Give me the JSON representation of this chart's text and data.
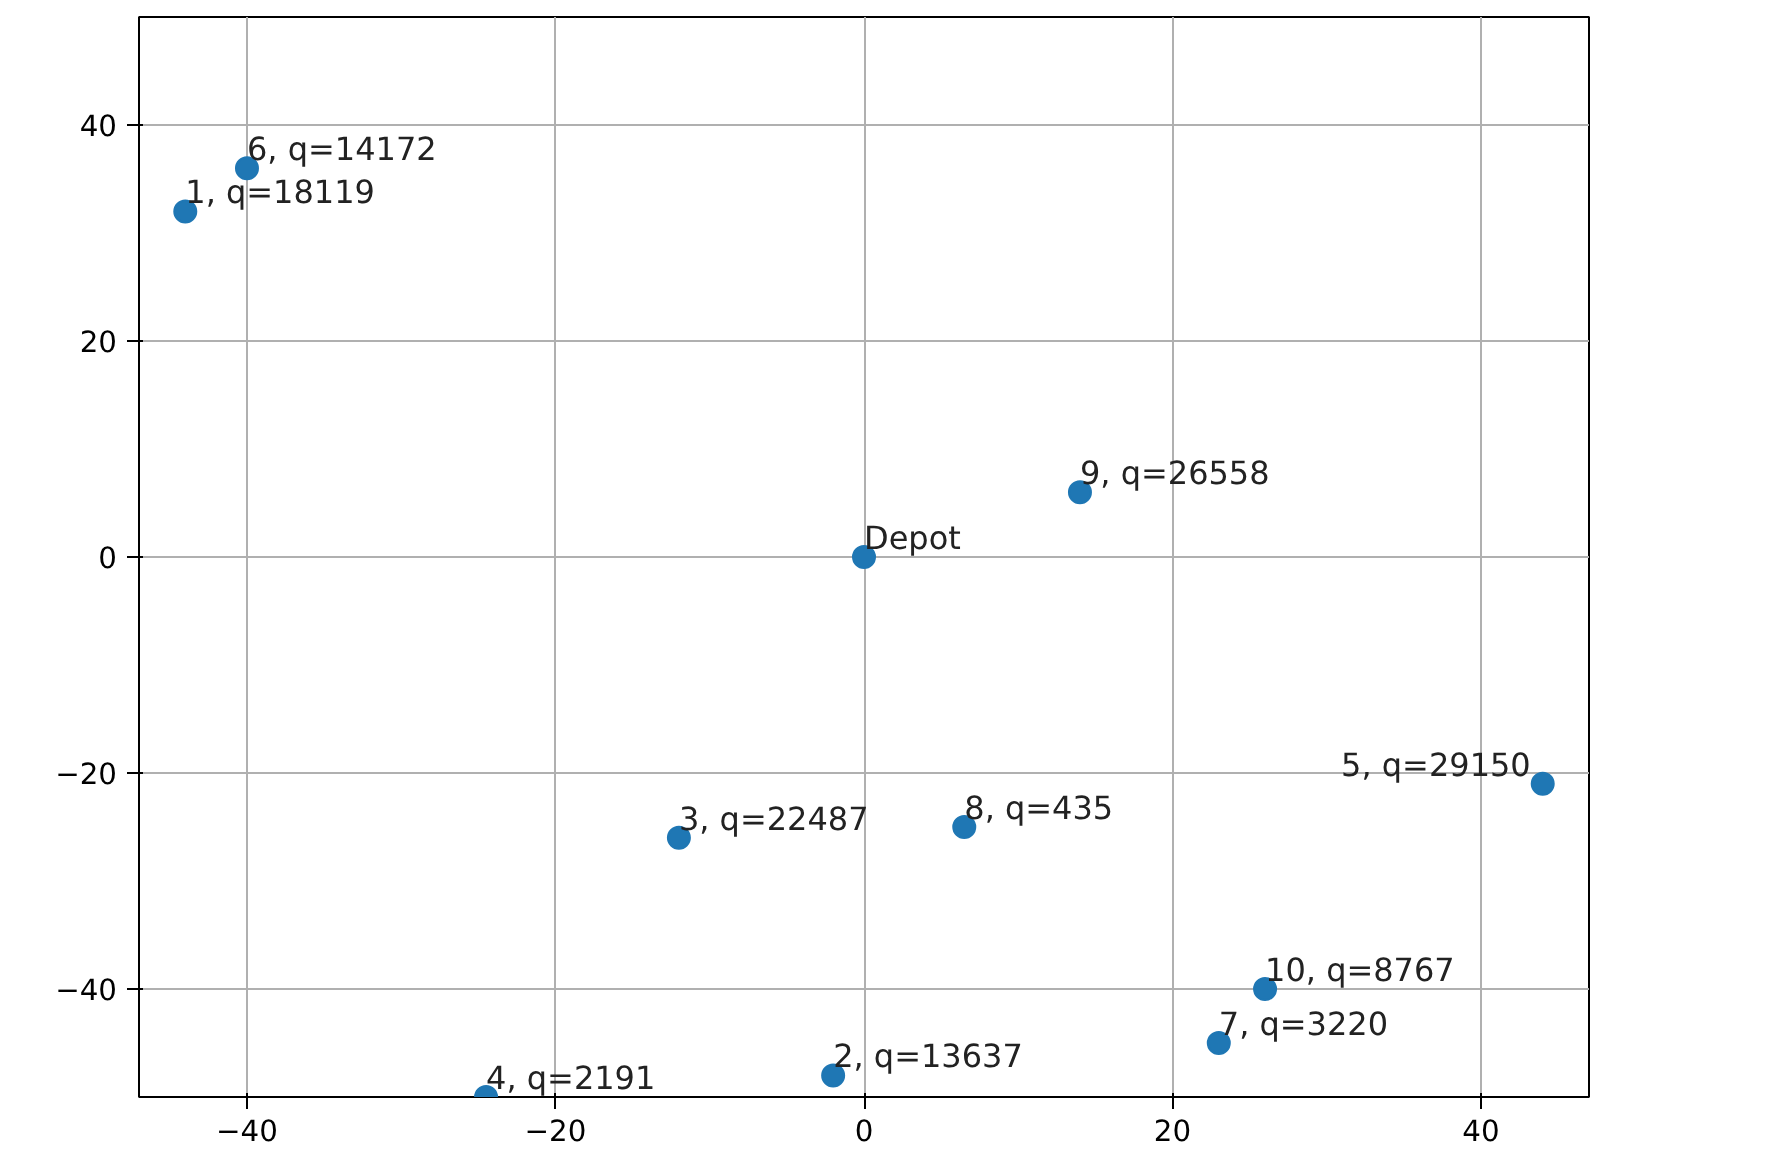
{
  "chart_data": {
    "type": "scatter",
    "x": [
      0,
      -44,
      -2,
      -12,
      -24.5,
      44,
      -40,
      23,
      6.5,
      14,
      26
    ],
    "values": [
      0,
      32,
      -48,
      -26,
      -50,
      -21,
      36,
      -45,
      -25,
      6,
      -40
    ],
    "color": "#1f77b4",
    "marker": "circle",
    "xlim": [
      -47,
      47
    ],
    "ylim": [
      -50,
      50
    ],
    "xticks": [
      -40,
      -20,
      0,
      20,
      40
    ],
    "yticks": [
      -40,
      -20,
      0,
      20,
      40
    ],
    "grid": true,
    "annotations": [
      {
        "text": "Depot",
        "x": 0,
        "y": 0
      },
      {
        "text": "1, q=18119",
        "x": -44,
        "y": 32
      },
      {
        "text": "2, q=13637",
        "x": -2,
        "y": -48
      },
      {
        "text": "3, q=22487",
        "x": -12,
        "y": -26
      },
      {
        "text": "4, q=2191",
        "x": -24.5,
        "y": -50
      },
      {
        "text": "5, q=29150",
        "x": 44,
        "y": -21
      },
      {
        "text": "6, q=14172",
        "x": -40,
        "y": 36
      },
      {
        "text": "7, q=3220",
        "x": 23,
        "y": -45
      },
      {
        "text": "8, q=435",
        "x": 6.5,
        "y": -25
      },
      {
        "text": "9, q=26558",
        "x": 14,
        "y": 6
      },
      {
        "text": "10, q=8767",
        "x": 26,
        "y": -40
      }
    ]
  }
}
